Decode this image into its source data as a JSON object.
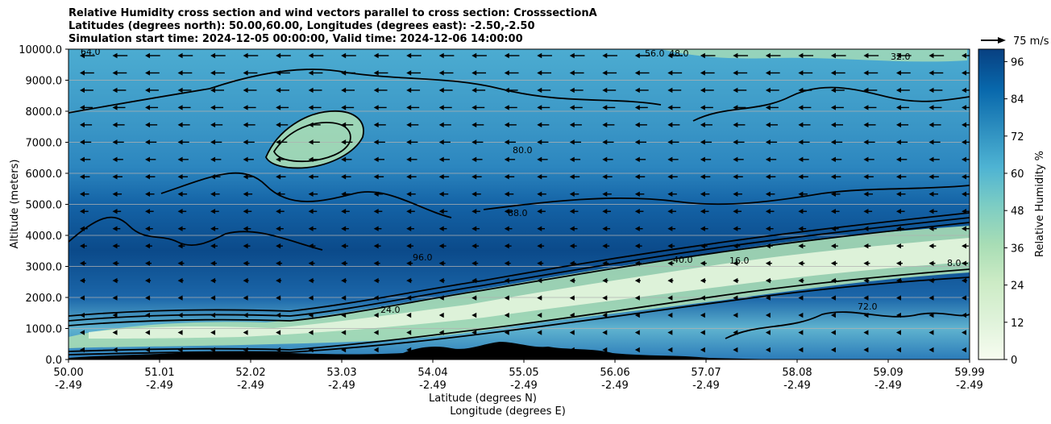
{
  "chart_data": {
    "type": "heatmap",
    "title": [
      "Relative Humidity cross section and wind vectors parallel to cross section: CrosssectionA",
      "Latitudes (degrees north): 50.00,60.00, Longitudes (degrees east): -2.50,-2.50",
      "Simulation start time: 2024-12-05 00:00:00, Valid time: 2024-12-06 14:00:00"
    ],
    "xlabel": [
      "Latitude (degrees N)",
      "Longitude (degrees E)"
    ],
    "ylabel": "Altitude (meters)",
    "x_ticks_lat": [
      "50.00",
      "51.01",
      "52.02",
      "53.03",
      "54.04",
      "55.05",
      "56.06",
      "57.07",
      "58.08",
      "59.09",
      "59.99"
    ],
    "x_ticks_lon": [
      "-2.49",
      "-2.49",
      "-2.49",
      "-2.49",
      "-2.49",
      "-2.49",
      "-2.49",
      "-2.49",
      "-2.49",
      "-2.49",
      "-2.49"
    ],
    "y_ticks": [
      "0.0",
      "1000.0",
      "2000.0",
      "3000.0",
      "4000.0",
      "5000.0",
      "6000.0",
      "7000.0",
      "8000.0",
      "9000.0",
      "10000.0"
    ],
    "ylim": [
      0,
      10000
    ],
    "colorbar": {
      "label": "Relative Humidity %",
      "ticks": [
        "0",
        "12",
        "24",
        "36",
        "48",
        "60",
        "72",
        "84",
        "96"
      ],
      "range": [
        0,
        100
      ],
      "colormap": "GnBu"
    },
    "quiver_key": "75 m/s",
    "wind_direction": "westward (negative along cross section)",
    "contour_labels": [
      "64.0",
      "56.0",
      "48.0",
      "32.0",
      "88.0",
      "80.0",
      "72.0",
      "40.0",
      "24.0",
      "16.0",
      "8.0",
      "96.0"
    ],
    "rh_profile": [
      {
        "z": 0,
        "rh": 78
      },
      {
        "z": 500,
        "rh": 55
      },
      {
        "z": 1000,
        "rh": 35
      },
      {
        "z": 1500,
        "rh": 70
      },
      {
        "z": 2500,
        "rh": 92
      },
      {
        "z": 3500,
        "rh": 96
      },
      {
        "z": 4500,
        "rh": 94
      },
      {
        "z": 5500,
        "rh": 88
      },
      {
        "z": 6500,
        "rh": 72
      },
      {
        "z": 7500,
        "rh": 68
      },
      {
        "z": 8500,
        "rh": 66
      },
      {
        "z": 10000,
        "rh": 60
      }
    ],
    "dry_layer": {
      "description": "dry slot rising northward",
      "points": [
        {
          "lat": 50.0,
          "z": 700
        },
        {
          "lat": 52.02,
          "z": 800
        },
        {
          "lat": 54.04,
          "z": 1600
        },
        {
          "lat": 56.06,
          "z": 2000
        },
        {
          "lat": 58.08,
          "z": 3100
        },
        {
          "lat": 59.99,
          "z": 3400
        }
      ],
      "min_rh": 8
    },
    "upper_dry_patch": {
      "lat": 53.03,
      "z": 7000,
      "min_rh": 32
    }
  }
}
